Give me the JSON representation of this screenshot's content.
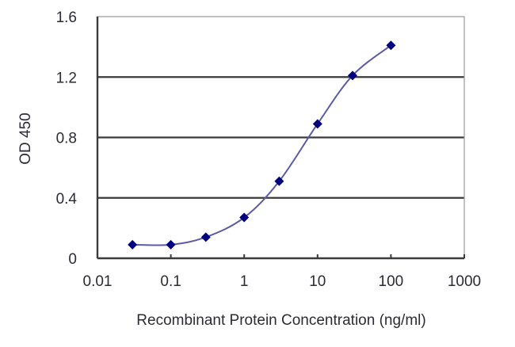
{
  "chart_data": {
    "type": "line",
    "title": "",
    "xlabel": "Recombinant Protein Concentration (ng/ml)",
    "ylabel": "OD 450",
    "x_scale": "log",
    "xlim": [
      0.01,
      1000
    ],
    "ylim": [
      0,
      1.6
    ],
    "x_ticks": [
      0.01,
      0.1,
      1,
      10,
      100,
      1000
    ],
    "x_tick_labels": [
      "0.01",
      "0.1",
      "1",
      "10",
      "100",
      "1000"
    ],
    "y_ticks": [
      0,
      0.4,
      0.8,
      1.2,
      1.6
    ],
    "y_tick_labels": [
      "0",
      "0.4",
      "0.8",
      "1.2",
      "1.6"
    ],
    "grid": {
      "horizontal": true,
      "vertical": false
    },
    "legend": null,
    "series": [
      {
        "name": "OD 450",
        "marker": "diamond",
        "color": "#000080",
        "line_color": "#5a5aa8",
        "x": [
          0.03,
          0.1,
          0.3,
          1,
          3,
          10,
          30,
          100
        ],
        "values": [
          0.09,
          0.09,
          0.14,
          0.27,
          0.51,
          0.89,
          1.21,
          1.41
        ]
      }
    ]
  },
  "colors": {
    "axis": "#3a3a3a",
    "gridline": "#3a3a3a",
    "tick_text": "#2b2b33",
    "marker": "#000080",
    "curve": "#5a5aa8",
    "background": "#ffffff"
  }
}
